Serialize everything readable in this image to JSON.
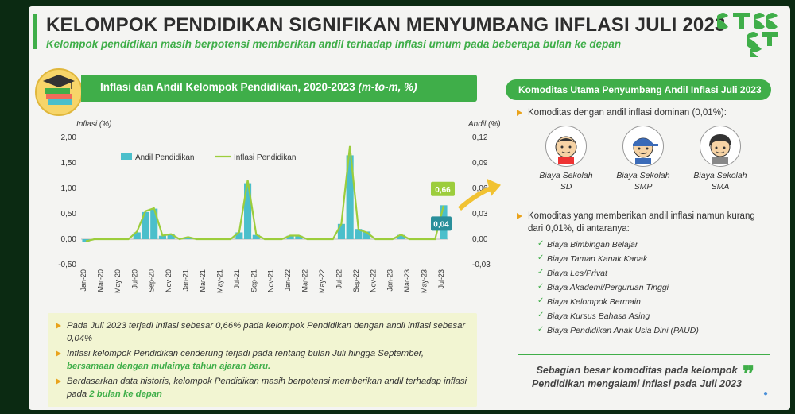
{
  "header": {
    "title": "KELOMPOK PENDIDIKAN SIGNIFIKAN MENYUMBANG INFLASI JULI 2023",
    "subtitle": "Kelompok pendidikan masih berpotensi memberikan andil terhadap inflasi umum pada beberapa bulan ke depan"
  },
  "chart_banner": {
    "text": "Inflasi dan Andil Kelompok Pendidikan, 2020-2023 ",
    "unit": "(m-to-m, %)"
  },
  "chart_data": {
    "type": "bar+line",
    "title": "Inflasi dan Andil Kelompok Pendidikan, 2020-2023 (m-to-m, %)",
    "y_left_label": "Inflasi (%)",
    "y_right_label": "Andil (%)",
    "y_left_ticks": [
      "2,00",
      "1,50",
      "1,00",
      "0,50",
      "0,00",
      "-0,50"
    ],
    "y_left_range": [
      -0.5,
      2.0
    ],
    "y_right_ticks": [
      "0,12",
      "0,09",
      "0,06",
      "0,03",
      "0,00",
      "-0,03"
    ],
    "y_right_range": [
      -0.03,
      0.12
    ],
    "x_labels": [
      "Jan-20",
      "Mar-20",
      "May-20",
      "Jul-20",
      "Sep-20",
      "Nov-20",
      "Jan-21",
      "Mar-21",
      "May-21",
      "Jul-21",
      "Sep-21",
      "Nov-21",
      "Jan-22",
      "Mar-22",
      "May-22",
      "Jul-22",
      "Sep-22",
      "Nov-22",
      "Jan-23",
      "Mar-23",
      "May-23",
      "Jul-23"
    ],
    "months": [
      "Jan-20",
      "Feb-20",
      "Mar-20",
      "Apr-20",
      "May-20",
      "Jun-20",
      "Jul-20",
      "Aug-20",
      "Sep-20",
      "Oct-20",
      "Nov-20",
      "Dec-20",
      "Jan-21",
      "Feb-21",
      "Mar-21",
      "Apr-21",
      "May-21",
      "Jun-21",
      "Jul-21",
      "Aug-21",
      "Sep-21",
      "Oct-21",
      "Nov-21",
      "Dec-21",
      "Jan-22",
      "Feb-22",
      "Mar-22",
      "Apr-22",
      "May-22",
      "Jun-22",
      "Jul-22",
      "Aug-22",
      "Sep-22",
      "Oct-22",
      "Nov-22",
      "Dec-22",
      "Jan-23",
      "Feb-23",
      "Mar-23",
      "Apr-23",
      "May-23",
      "Jun-23",
      "Jul-23"
    ],
    "series": [
      {
        "name": "Andil Pendidikan",
        "type": "bar",
        "axis": "right",
        "color": "#4bbfcb",
        "values": [
          -0.003,
          0.0,
          0.0,
          0.0,
          0.0,
          0.0,
          0.008,
          0.032,
          0.036,
          0.004,
          0.006,
          0.0,
          0.002,
          0.0,
          0.0,
          0.0,
          0.0,
          0.0,
          0.008,
          0.066,
          0.005,
          0.0,
          0.0,
          0.0,
          0.004,
          0.004,
          0.0,
          0.0,
          0.0,
          0.0,
          0.018,
          0.099,
          0.012,
          0.009,
          0.0,
          0.0,
          0.0,
          0.005,
          0.0,
          0.0,
          0.0,
          0.0,
          0.04
        ]
      },
      {
        "name": "Inflasi Pendidikan",
        "type": "line",
        "axis": "left",
        "color": "#9ccd3c",
        "values": [
          -0.04,
          0.0,
          0.0,
          0.0,
          0.0,
          0.0,
          0.15,
          0.55,
          0.61,
          0.07,
          0.1,
          0.0,
          0.04,
          0.0,
          0.0,
          0.0,
          0.0,
          0.0,
          0.14,
          1.16,
          0.09,
          0.0,
          0.0,
          0.0,
          0.07,
          0.07,
          0.0,
          0.0,
          0.0,
          0.0,
          0.3,
          1.83,
          0.19,
          0.13,
          0.0,
          0.0,
          0.0,
          0.09,
          0.0,
          0.0,
          0.0,
          0.0,
          0.66
        ]
      }
    ],
    "callouts": {
      "line_last": "0,66",
      "bar_last": "0,04"
    },
    "legend_position": "top-left"
  },
  "notes": [
    {
      "text": "Pada Juli 2023 terjadi inflasi sebesar 0,66% pada kelompok Pendidikan dengan andil inflasi sebesar 0,04%",
      "highlight": ""
    },
    {
      "text": "Inflasi kelompok Pendidikan cenderung terjadi pada rentang bulan Juli hingga September, ",
      "highlight": "bersamaan dengan mulainya tahun ajaran baru."
    },
    {
      "text": "Berdasarkan data historis, kelompok Pendidikan masih berpotensi memberikan andil terhadap inflasi pada ",
      "highlight": "2 bulan ke depan"
    }
  ],
  "right_panel": {
    "banner": "Komoditas Utama Penyumbang Andil Inflasi Juli 2023",
    "dominant_heading": "Komoditas dengan andil inflasi dominan (0,01%):",
    "dominant": [
      {
        "line1": "Biaya Sekolah",
        "line2": "SD"
      },
      {
        "line1": "Biaya Sekolah",
        "line2": "SMP"
      },
      {
        "line1": "Biaya Sekolah",
        "line2": "SMA"
      }
    ],
    "minor_heading": "Komoditas yang memberikan andil inflasi namun kurang dari 0,01%, di antaranya:",
    "minor": [
      "Biaya Bimbingan Belajar",
      "Biaya Taman Kanak Kanak",
      "Biaya Les/Privat",
      "Biaya Akademi/Perguruan Tinggi",
      "Biaya Kelompok Bermain",
      "Biaya Kursus Bahasa Asing",
      "Biaya Pendidikan Anak Usia Dini (PAUD)"
    ],
    "quote": "Sebagian besar komoditas pada kelompok Pendidikan mengalami inflasi pada Juli 2023",
    "quote_mark": "❞"
  },
  "colors": {
    "green": "#3fae49",
    "teal": "#4bbfcb",
    "lime": "#9ccd3c",
    "orange": "#e9a21b"
  }
}
